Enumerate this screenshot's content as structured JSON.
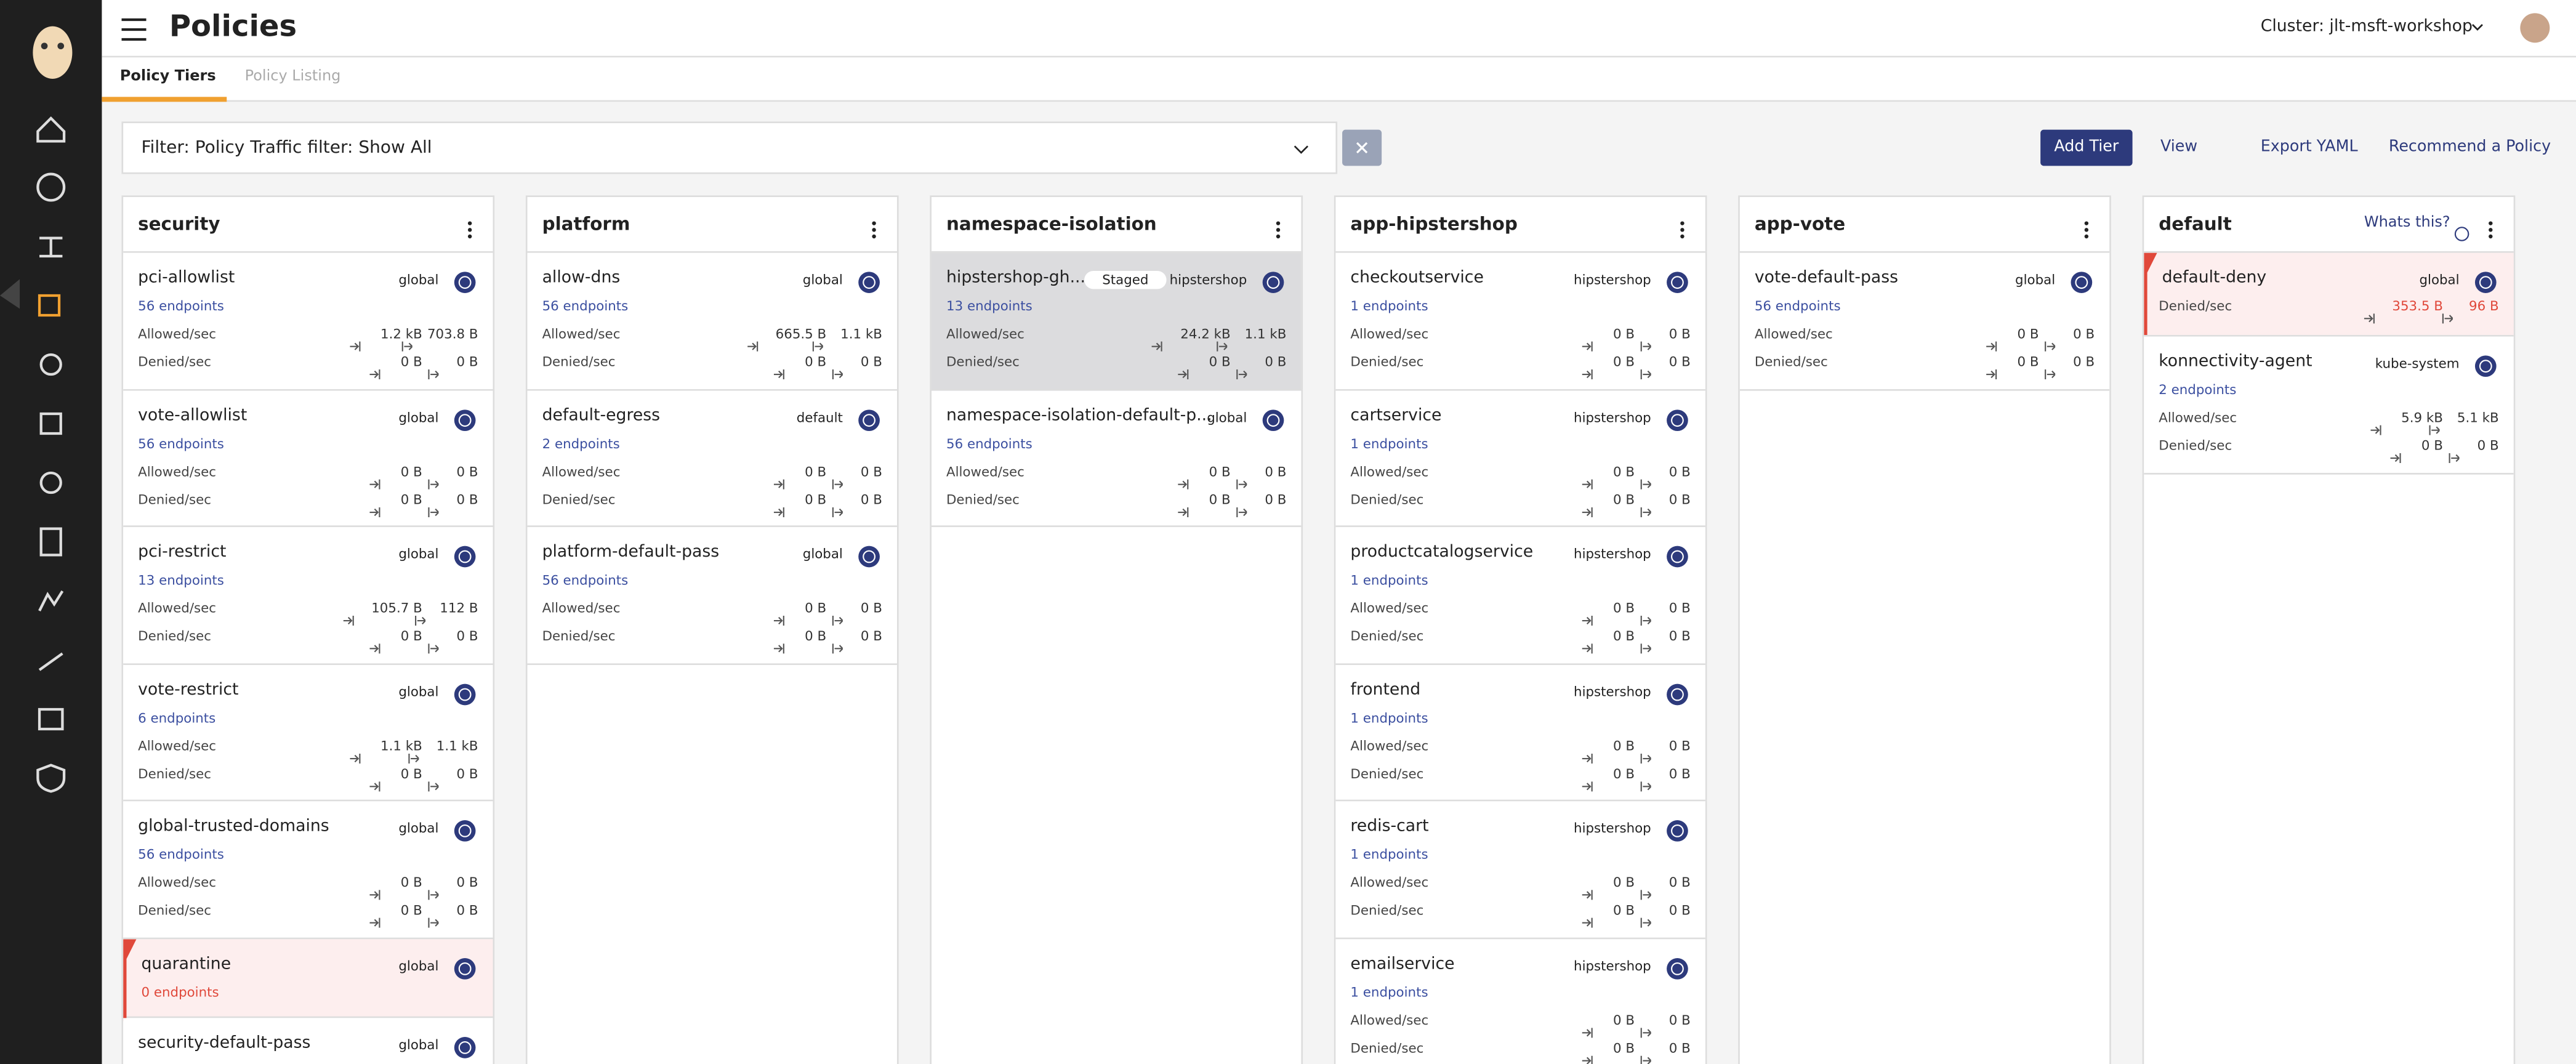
{
  "header": {
    "title": "Policies",
    "cluster": "Cluster: jlt-msft-workshop"
  },
  "tabs": [
    "Policy Tiers",
    "Policy Listing"
  ],
  "filter": "Filter: Policy Traffic filter: Show All",
  "actions": [
    "Add Tier",
    "View",
    "Export YAML",
    "Recommend a Policy"
  ],
  "labels": {
    "allowed": "Allowed/sec",
    "denied": "Denied/sec",
    "staged": "Staged",
    "whats_this": "Whats this?"
  },
  "tiers": [
    {
      "name": "security",
      "policies": [
        {
          "name": "pci-allowlist",
          "scope": "global",
          "endpoints": "56 endpoints",
          "allowed": [
            "1.2 kB",
            "703.8 B"
          ],
          "denied": [
            "0 B",
            "0 B"
          ]
        },
        {
          "name": "vote-allowlist",
          "scope": "global",
          "endpoints": "56 endpoints",
          "allowed": [
            "0 B",
            "0 B"
          ],
          "denied": [
            "0 B",
            "0 B"
          ]
        },
        {
          "name": "pci-restrict",
          "scope": "global",
          "endpoints": "13 endpoints",
          "allowed": [
            "105.7 B",
            "112 B"
          ],
          "denied": [
            "0 B",
            "0 B"
          ]
        },
        {
          "name": "vote-restrict",
          "scope": "global",
          "endpoints": "6 endpoints",
          "allowed": [
            "1.1 kB",
            "1.1 kB"
          ],
          "denied": [
            "0 B",
            "0 B"
          ]
        },
        {
          "name": "global-trusted-domains",
          "scope": "global",
          "endpoints": "56 endpoints",
          "allowed": [
            "0 B",
            "0 B"
          ],
          "denied": [
            "0 B",
            "0 B"
          ]
        },
        {
          "name": "quarantine",
          "scope": "global",
          "endpoints": "0 endpoints",
          "alert": true
        },
        {
          "name": "security-default-pass",
          "scope": "global"
        }
      ]
    },
    {
      "name": "platform",
      "policies": [
        {
          "name": "allow-dns",
          "scope": "global",
          "endpoints": "56 endpoints",
          "allowed": [
            "665.5 B",
            "1.1 kB"
          ],
          "denied": [
            "0 B",
            "0 B"
          ]
        },
        {
          "name": "default-egress",
          "scope": "default",
          "endpoints": "2 endpoints",
          "allowed": [
            "0 B",
            "0 B"
          ],
          "denied": [
            "0 B",
            "0 B"
          ]
        },
        {
          "name": "platform-default-pass",
          "scope": "global",
          "endpoints": "56 endpoints",
          "allowed": [
            "0 B",
            "0 B"
          ],
          "denied": [
            "0 B",
            "0 B"
          ]
        }
      ]
    },
    {
      "name": "namespace-isolation",
      "policies": [
        {
          "name": "hipstershop-gh...",
          "scope": "hipstershop",
          "endpoints": "13 endpoints",
          "allowed": [
            "24.2 kB",
            "1.1 kB"
          ],
          "denied": [
            "0 B",
            "0 B"
          ],
          "staged": true
        },
        {
          "name": "namespace-isolation-default-p...",
          "scope": "global",
          "endpoints": "56 endpoints",
          "allowed": [
            "0 B",
            "0 B"
          ],
          "denied": [
            "0 B",
            "0 B"
          ]
        }
      ]
    },
    {
      "name": "app-hipstershop",
      "policies": [
        {
          "name": "checkoutservice",
          "scope": "hipstershop",
          "endpoints": "1 endpoints",
          "allowed": [
            "0 B",
            "0 B"
          ],
          "denied": [
            "0 B",
            "0 B"
          ]
        },
        {
          "name": "cartservice",
          "scope": "hipstershop",
          "endpoints": "1 endpoints",
          "allowed": [
            "0 B",
            "0 B"
          ],
          "denied": [
            "0 B",
            "0 B"
          ]
        },
        {
          "name": "productcatalogservice",
          "scope": "hipstershop",
          "endpoints": "1 endpoints",
          "allowed": [
            "0 B",
            "0 B"
          ],
          "denied": [
            "0 B",
            "0 B"
          ]
        },
        {
          "name": "frontend",
          "scope": "hipstershop",
          "endpoints": "1 endpoints",
          "allowed": [
            "0 B",
            "0 B"
          ],
          "denied": [
            "0 B",
            "0 B"
          ]
        },
        {
          "name": "redis-cart",
          "scope": "hipstershop",
          "endpoints": "1 endpoints",
          "allowed": [
            "0 B",
            "0 B"
          ],
          "denied": [
            "0 B",
            "0 B"
          ]
        },
        {
          "name": "emailservice",
          "scope": "hipstershop",
          "endpoints": "1 endpoints",
          "allowed": [
            "0 B",
            "0 B"
          ],
          "denied": [
            "0 B",
            "0 B"
          ]
        }
      ]
    },
    {
      "name": "app-vote",
      "policies": [
        {
          "name": "vote-default-pass",
          "scope": "global",
          "endpoints": "56 endpoints",
          "allowed": [
            "0 B",
            "0 B"
          ],
          "denied": [
            "0 B",
            "0 B"
          ]
        }
      ]
    },
    {
      "name": "default",
      "whats_this": true,
      "policies": [
        {
          "name": "default-deny",
          "scope": "global",
          "denied": [
            "353.5 B",
            "96 B"
          ],
          "alert": true
        },
        {
          "name": "konnectivity-agent",
          "scope": "kube-system",
          "endpoints": "2 endpoints",
          "allowed": [
            "5.9 kB",
            "5.1 kB"
          ],
          "denied": [
            "0 B",
            "0 B"
          ]
        }
      ]
    }
  ]
}
